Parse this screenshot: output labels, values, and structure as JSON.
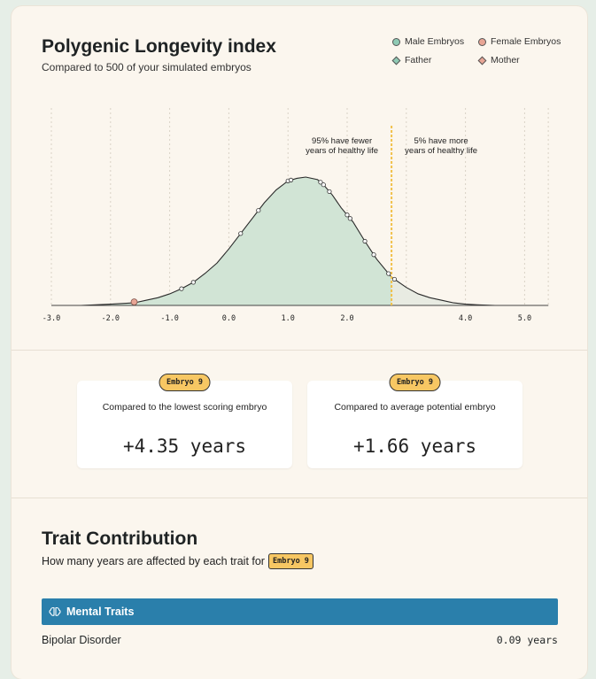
{
  "header": {
    "title": "Polygenic Longevity index",
    "subtitle": "Compared to 500 of your simulated embryos"
  },
  "legend": {
    "male": "Male Embryos",
    "female": "Female Embryos",
    "father": "Father",
    "mother": "Mother"
  },
  "colors": {
    "male": "#8fcab4",
    "female": "#e8a595",
    "father": "#8fcab4",
    "mother": "#e8a595",
    "area_main": "#d1e4d5",
    "area_tail": "#e8ebe2",
    "threshold": "#f0c04a"
  },
  "chart_data": {
    "type": "area",
    "xlim": [
      -3.0,
      5.4
    ],
    "xticks": [
      -3.0,
      -2.0,
      -1.0,
      0.0,
      1.0,
      2.0,
      4.0,
      5.0
    ],
    "tick_labels": [
      "-3.0",
      "-2.0",
      "-1.0",
      "0.0",
      "1.0",
      "2.0",
      "4.0",
      "5.0"
    ],
    "grid": true,
    "threshold": 2.75,
    "annotations": {
      "left": [
        "95% have fewer",
        "years of healthy life"
      ],
      "right": [
        "5% have more",
        "years of healthy life"
      ]
    },
    "curve": {
      "x": [
        -3.0,
        -2.5,
        -2.0,
        -1.8,
        -1.6,
        -1.4,
        -1.2,
        -1.0,
        -0.8,
        -0.6,
        -0.4,
        -0.2,
        0.0,
        0.2,
        0.4,
        0.6,
        0.8,
        1.0,
        1.15,
        1.3,
        1.5,
        1.6,
        1.75,
        1.9,
        2.1,
        2.3,
        2.5,
        2.75,
        3.0,
        3.2,
        3.4,
        3.6,
        3.8,
        4.0,
        4.2,
        4.5,
        5.0,
        5.4
      ],
      "y": [
        0.0,
        0.0,
        0.01,
        0.015,
        0.02,
        0.04,
        0.06,
        0.09,
        0.13,
        0.18,
        0.25,
        0.33,
        0.44,
        0.56,
        0.68,
        0.8,
        0.9,
        0.97,
        0.99,
        1.0,
        0.98,
        0.94,
        0.86,
        0.76,
        0.65,
        0.5,
        0.36,
        0.22,
        0.14,
        0.09,
        0.06,
        0.04,
        0.02,
        0.01,
        0.005,
        0.0,
        0.0,
        0.0
      ]
    },
    "series": [
      {
        "name": "Male Embryos",
        "points": [
          -0.8,
          -0.6,
          0.2,
          0.5,
          1.0,
          1.05,
          1.55,
          1.6,
          1.7,
          2.0,
          2.05,
          2.3,
          2.45,
          2.7,
          2.8
        ]
      },
      {
        "name": "Female Embryos",
        "points": [
          -1.6
        ]
      }
    ]
  },
  "stats": [
    {
      "badge": "Embryo 9",
      "label": "Compared to the lowest scoring embryo",
      "value": "+4.35 years"
    },
    {
      "badge": "Embryo 9",
      "label": "Compared to average potential embryo",
      "value": "+1.66 years"
    }
  ],
  "traits": {
    "title": "Trait Contribution",
    "subtitle": "How many years are affected by each trait for",
    "badge": "Embryo 9",
    "category": "Mental Traits",
    "rows": [
      {
        "name": "Bipolar Disorder",
        "value": "0.09 years"
      }
    ]
  }
}
